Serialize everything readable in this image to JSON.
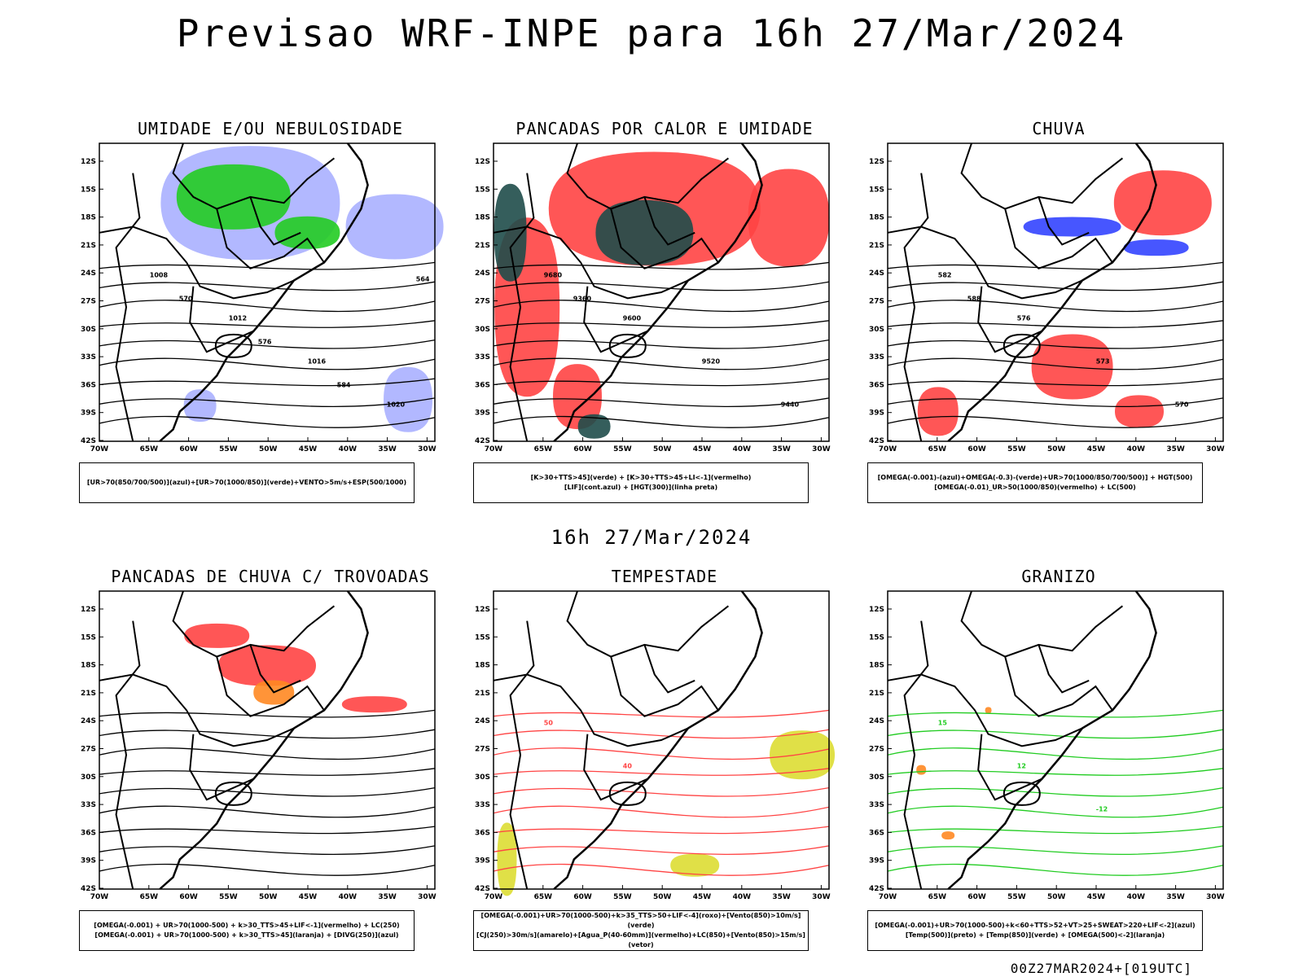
{
  "title": "Previsao WRF-INPE  para 16h 27/Mar/2024",
  "subtitle": "16h 27/Mar/2024",
  "footer": "00Z27MAR2024+[019UTC]",
  "axes": {
    "lat_labels": [
      "12S",
      "15S",
      "18S",
      "21S",
      "24S",
      "27S",
      "30S",
      "33S",
      "36S",
      "39S",
      "42S"
    ],
    "lon_labels": [
      "70W",
      "65W",
      "60W",
      "55W",
      "50W",
      "45W",
      "40W",
      "35W",
      "30W"
    ]
  },
  "panels": [
    {
      "title": "UMIDADE E/OU NEBULOSIDADE",
      "legend": [
        "[UR>70(850/700/500)](azul)+[UR>70(1000/850)](verde)+VENTO>5m/s+ESP(500/1000)"
      ],
      "labels": [
        "1008",
        "1012",
        "1016",
        "1020",
        "570",
        "576",
        "584",
        "564"
      ]
    },
    {
      "title": "PANCADAS POR CALOR E UMIDADE",
      "legend": [
        "[K>30+TTS>45](verde) + [K>30+TTS>45+LI<-1](vermelho)",
        "[LIF](cont.azul) + [HGT(300)](linha preta)"
      ],
      "labels": [
        "9680",
        "9600",
        "9520",
        "9440",
        "9360"
      ]
    },
    {
      "title": "CHUVA",
      "legend": [
        "[OMEGA(-0.001)-(azul)+OMEGA(-0.3)-(verde)+UR>70(1000/850/700/500)] + HGT(500)",
        "[OMEGA(-0.01)_UR>50(1000/850)(vermelho) + LC(500)"
      ],
      "labels": [
        "582",
        "576",
        "573",
        "570",
        "588"
      ]
    },
    {
      "title": "PANCADAS DE CHUVA C/ TROVOADAS",
      "legend": [
        "[OMEGA(-0.001) + UR>70(1000-500) + k>30_TTS>45+LIF<-1](vermelho) + LC(250)",
        "[OMEGA(-0.001) + UR>70(1000-500) + k>30_TTS>45](laranja) + [DIVG(250)](azul)"
      ],
      "labels": []
    },
    {
      "title": "TEMPESTADE",
      "legend": [
        "[OMEGA(-0.001)+UR>70(1000-500)+k>35_TTS>50+LIF<-4](roxo)+[Vento(850)>10m/s](verde)",
        "[CJ(250)>30m/s](amarelo)+[Agua_P(40-60mm)](vermelho)+LC(850)+[Vento(850)>15m/s](vetor)"
      ],
      "labels": [
        "50",
        "40"
      ]
    },
    {
      "title": "GRANIZO",
      "legend": [
        "[OMEGA(-0.001)+UR>70(1000-500)+k<60+TTS>52+VT>25+SWEAT>220+LIF<-2](azul)",
        "[Temp(500)](preto) + [Temp(850)](verde) + [OMEGA(500)<-2](laranja)"
      ],
      "labels": [
        "15",
        "12",
        "-12"
      ]
    }
  ],
  "colors": {
    "black": "#000000",
    "green": "#22cc22",
    "blue": "#3344ff",
    "lightblue": "#aab0ff",
    "red": "#ff4444",
    "darkteal": "#1f4d4a",
    "orange": "#ff8822",
    "yellow": "#dddd33"
  }
}
